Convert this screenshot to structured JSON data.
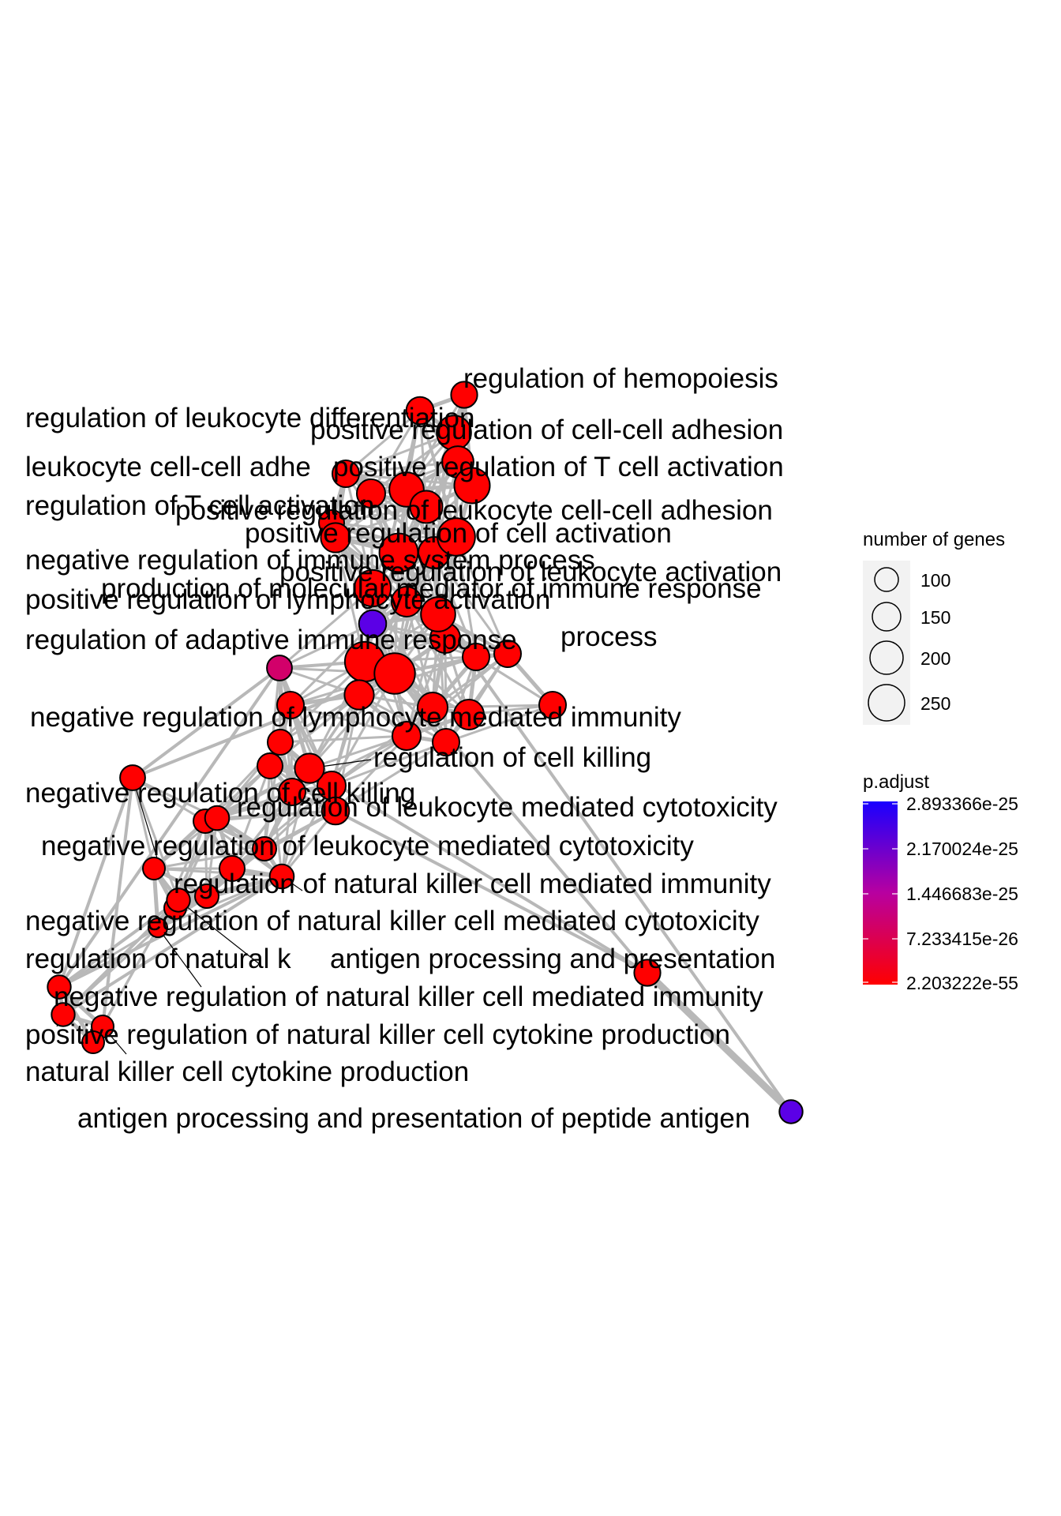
{
  "legend": {
    "size_title": "number of genes",
    "size_values": [
      "100",
      "150",
      "200",
      "250"
    ],
    "color_title": "p.adjust",
    "color_values": [
      "2.893366e-25",
      "2.170024e-25",
      "1.446683e-25",
      "7.233415e-26",
      "2.203222e-55"
    ],
    "colors": {
      "high": "#1a00ff",
      "mid": "#b800a0",
      "low": "#ff0000"
    }
  },
  "labels": {
    "regulation_of_hemopoiesis": "regulation of hemopoiesis",
    "regulation_of_leukocyte_differentiation": "regulation of leukocyte differentiation",
    "positive_regulation_of_cell_cell_adhesion": "positive regulation of cell-cell adhesion",
    "leukocyte_cell_cell_adhe": "leukocyte cell-cell adhe",
    "positive_regulation_of_t_cell_activation": "positive regulation of T cell activation",
    "regulation_of_t_cell_activation": "regulation of T cell activation",
    "positive_regulation_of_leukocyte_cell_cell_adhesion": "positive regulation of leukocyte cell-cell adhesion",
    "positive_regulation_of_cell_activation": "positive regulation of cell activation",
    "negative_regulation_of_immune_system_process": "negative regulation of immune system process",
    "positive_regulation_of_leukocyte_activation": "positive regulation of leukocyte activation",
    "production_of_molecular_mediator_of_immune_response": "production of molecular mediator of immune response",
    "positive_regulation_of_lymphocyte_activation": "positive regulation of lymphocyte activation",
    "regulation_of_adaptive_immune_response": "regulation of adaptive immune response",
    "process": "process",
    "negative_regulation_of_lymphocyte_mediated_immunity": "negative regulation of lymphocyte mediated immunity",
    "regulation_of_cell_killing": "regulation of cell killing",
    "negative_regulation_of_cell_killing": "negative regulation of cell killing",
    "regulation_of_leukocyte_mediated_cytotoxicity": "regulation of leukocyte mediated cytotoxicity",
    "negative_regulation_of_leukocyte_mediated_cytotoxicity": "negative regulation of leukocyte mediated cytotoxicity",
    "regulation_of_natural_killer_cell_mediated_immunity": "regulation of natural killer cell mediated immunity",
    "negative_regulation_of_natural_killer_cell_mediated_cytotoxicity": "negative regulation of natural killer cell mediated cytotoxicity",
    "regulation_of_natural_killer": "regulation of natural k",
    "antigen_processing_and_presentation": "antigen processing and presentation",
    "negative_regulation_of_natural_killer_cell_mediated_immunity": "negative regulation of natural killer cell mediated immunity",
    "positive_regulation_of_natural_killer_cell_cytokine_production": "positive regulation of natural killer cell cytokine production",
    "natural_killer_cell_cytokine_production": "natural killer cell cytokine production",
    "antigen_processing_and_presentation_of_peptide_antigen": "antigen processing and presentation of peptide antigen"
  },
  "nodes": [
    {
      "id": "hemopoiesis",
      "genes": 120,
      "p_adjust": 2e-55
    },
    {
      "id": "leuk-diff",
      "genes": 130,
      "p_adjust": 2e-55
    },
    {
      "id": "cc-adh-pos",
      "genes": 200,
      "p_adjust": 2e-55
    },
    {
      "id": "tcell-act-pos",
      "genes": 170,
      "p_adjust": 2e-55
    },
    {
      "id": "leuk-cc-adh",
      "genes": 210,
      "p_adjust": 2e-55
    },
    {
      "id": "tcell-act",
      "genes": 200,
      "p_adjust": 2e-55
    },
    {
      "id": "leuk-cc-adh-pos",
      "genes": 180,
      "p_adjust": 2e-55
    },
    {
      "id": "cell-act-pos",
      "genes": 230,
      "p_adjust": 2e-55
    },
    {
      "id": "imm-sys-neg",
      "genes": 150,
      "p_adjust": 2e-55
    },
    {
      "id": "leuk-act-pos",
      "genes": 240,
      "p_adjust": 2e-55
    },
    {
      "id": "mol-mediator",
      "genes": 200,
      "p_adjust": 2e-55
    },
    {
      "id": "lymph-act-pos",
      "genes": 220,
      "p_adjust": 2e-55
    },
    {
      "id": "purple-node",
      "genes": 130,
      "p_adjust": 2.6e-25
    },
    {
      "id": "adaptive-resp",
      "genes": 250,
      "p_adjust": 2e-55
    },
    {
      "id": "magenta-node",
      "genes": 110,
      "p_adjust": 1.2e-25
    },
    {
      "id": "effector-process",
      "genes": 260,
      "p_adjust": 2e-55
    },
    {
      "id": "lymph-imm-neg",
      "genes": 150,
      "p_adjust": 2e-55
    },
    {
      "id": "cell-killing",
      "genes": 150,
      "p_adjust": 2e-55
    },
    {
      "id": "cell-killing-neg",
      "genes": 110,
      "p_adjust": 2e-55
    },
    {
      "id": "leuk-cytotox",
      "genes": 130,
      "p_adjust": 2e-55
    },
    {
      "id": "leuk-cytotox-neg",
      "genes": 100,
      "p_adjust": 2e-55
    },
    {
      "id": "nk-imm",
      "genes": 100,
      "p_adjust": 2e-55
    },
    {
      "id": "nk-cytotox-neg",
      "genes": 90,
      "p_adjust": 2e-55
    },
    {
      "id": "nk-reg",
      "genes": 90,
      "p_adjust": 2e-55
    },
    {
      "id": "antigen-pp",
      "genes": 120,
      "p_adjust": 2e-55
    },
    {
      "id": "nk-imm-neg",
      "genes": 90,
      "p_adjust": 2e-55
    },
    {
      "id": "nk-cytokine-pos",
      "genes": 80,
      "p_adjust": 2e-55
    },
    {
      "id": "nk-cytokine",
      "genes": 80,
      "p_adjust": 2e-55
    },
    {
      "id": "antigen-peptide",
      "genes": 90,
      "p_adjust": 2.9e-25
    }
  ]
}
